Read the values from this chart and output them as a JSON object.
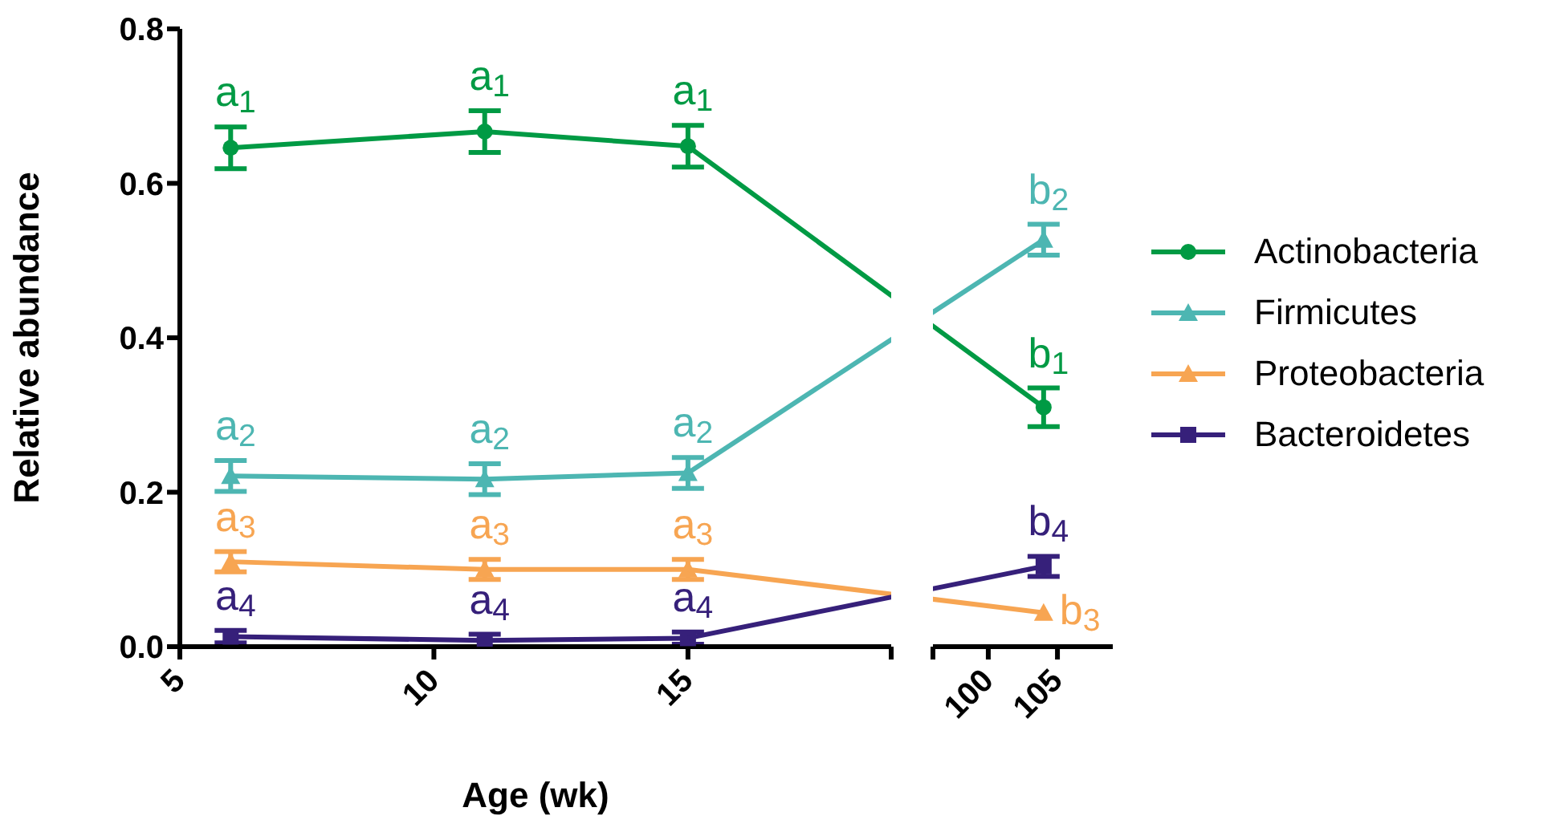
{
  "chart_data": [
    {
      "type": "line",
      "xlabel": "Age (wk)",
      "ylabel": "Relative abundance",
      "x": [
        6,
        11,
        15
      ],
      "series": [
        {
          "color": "#009a44",
          "marker": "circle",
          "values": [
            0.646,
            0.667,
            0.648
          ],
          "errors": [
            0.027,
            0.027,
            0.027
          ]
        },
        {
          "color": "#4db6b2",
          "marker": "triangle",
          "values": [
            0.221,
            0.217,
            0.225
          ],
          "errors": [
            0.02,
            0.02,
            0.02
          ]
        },
        {
          "color": "#f7a552",
          "marker": "triangle",
          "values": [
            0.11,
            0.1,
            0.1
          ],
          "errors": [
            0.013,
            0.013,
            0.013
          ]
        },
        {
          "color": "#36207a",
          "marker": "square",
          "values": [
            0.013,
            0.008,
            0.011
          ],
          "errors": [
            0.008,
            0.008,
            0.008
          ]
        }
      ],
      "xlim": [
        5,
        19
      ],
      "xticks": [
        5,
        10,
        15,
        {
          "value": 19,
          "label": null
        }
      ],
      "ylim": [
        0,
        0.8
      ],
      "yticks": [
        {
          "value": 0,
          "label": "0.0"
        },
        {
          "value": 0.2,
          "label": "0.2"
        },
        {
          "value": 0.4,
          "label": "0.4"
        },
        {
          "value": 0.6,
          "label": "0.6"
        },
        {
          "value": 0.8,
          "label": "0.8"
        }
      ],
      "line_style": "solid",
      "annotations": [
        {
          "text": "a$_{1}$",
          "x": 6,
          "y": 0.646
        },
        {
          "text": "a$_{1}$",
          "x": 11,
          "y": 0.667
        },
        {
          "text": "a$_{1}$",
          "x": 15,
          "y": 0.648
        },
        {
          "text": "a$_{2}$",
          "x": 6,
          "y": 0.221
        },
        {
          "text": "a$_{2}$",
          "x": 11,
          "y": 0.217
        },
        {
          "text": "a$_{2}$",
          "x": 15,
          "y": 0.225
        },
        {
          "text": "a$_{3}$",
          "x": 6,
          "y": 0.11
        },
        {
          "text": "a$_{3}$",
          "x": 11,
          "y": 0.1
        },
        {
          "text": "a$_{3}$",
          "x": 15,
          "y": 0.1
        },
        {
          "text": "a$_{4}$",
          "x": 6,
          "y": 0.013
        },
        {
          "text": "a$_{4}$",
          "x": 11,
          "y": 0.008
        },
        {
          "text": "a$_{4}$",
          "x": 15,
          "y": 0.011
        }
      ]
    },
    {
      "type": "line",
      "x": [
        104
      ],
      "series": [
        {
          "name": "Actinobacteria",
          "color": "#009a44",
          "marker": "circle",
          "values": [
            0.31
          ],
          "errors": [
            0.025
          ]
        },
        {
          "name": "Firmicutes",
          "color": "#4db6b2",
          "marker": "triangle",
          "values": [
            0.527
          ],
          "errors": [
            0.02
          ]
        },
        {
          "name": "Proteobacteria",
          "color": "#f7a552",
          "marker": "triangle",
          "values": [
            0.044
          ]
        },
        {
          "name": "Bacteroidetes",
          "color": "#36207a",
          "marker": "square",
          "values": [
            0.104
          ],
          "errors": [
            0.013
          ]
        }
      ],
      "xlim": [
        96,
        109
      ],
      "xticks": [
        {
          "value": 96,
          "label": null
        },
        100,
        105
      ],
      "ylim": [
        0,
        0.8
      ],
      "tick_labels": "x",
      "legend": "right",
      "line_style": "solid",
      "annotations": [
        {
          "text": "b$_{1}$",
          "x": 104,
          "y": 0.31
        },
        {
          "text": "b$_{2}$",
          "x": 104,
          "y": 0.527
        },
        {
          "text": "b$_{3}$",
          "x": 104,
          "y": 0.044
        },
        {
          "text": "b$_{4}$",
          "x": 104,
          "y": 0.104
        }
      ]
    }
  ]
}
